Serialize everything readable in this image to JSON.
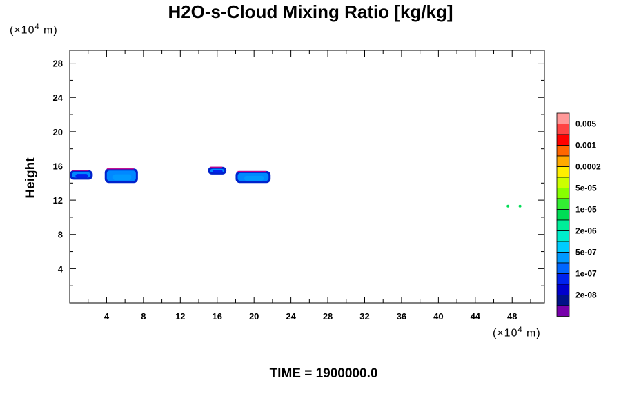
{
  "title": "H2O-s-Cloud Mixing Ratio [kg/kg]",
  "footer": "TIME = 1900000.0",
  "y_unit": {
    "prefix": "(×10",
    "exp": "4",
    "suffix": " m)"
  },
  "x_unit": {
    "prefix": "(×10",
    "exp": "4",
    "suffix": " m)"
  },
  "chart_data": {
    "type": "heatmap",
    "title": "H2O-s-Cloud Mixing Ratio [kg/kg]",
    "xlabel": "",
    "ylabel": "Height",
    "x_unit_label": "(×10^4 m)",
    "y_unit_label": "(×10^4 m)",
    "xlim": [
      0,
      51.5
    ],
    "ylim": [
      0,
      29.5
    ],
    "x_ticks": [
      4,
      8,
      12,
      16,
      20,
      24,
      28,
      32,
      36,
      40,
      44,
      48
    ],
    "y_ticks": [
      4,
      8,
      12,
      16,
      20,
      24,
      28
    ],
    "colorbar": {
      "labels": [
        "0.005",
        "0.001",
        "0.0002",
        "5e-05",
        "1e-05",
        "2e-06",
        "5e-07",
        "1e-07",
        "2e-08"
      ],
      "colors": [
        "#ff9999",
        "#ff4444",
        "#ff0000",
        "#ff6600",
        "#ffaa00",
        "#ffee00",
        "#ccff00",
        "#88ff00",
        "#33ee33",
        "#00dd55",
        "#00ee99",
        "#00eecc",
        "#00ccff",
        "#0099ff",
        "#0066ff",
        "#0022ee",
        "#0000cc",
        "#001188",
        "#7700aa"
      ]
    },
    "cloud_regions": [
      {
        "x_range": [
          0,
          2.5
        ],
        "y_range": [
          14.4,
          15.5
        ],
        "level": "1e-07"
      },
      {
        "x_range": [
          3.8,
          7.4
        ],
        "y_range": [
          14.0,
          15.7
        ],
        "level": "5e-07"
      },
      {
        "x_range": [
          15,
          17
        ],
        "y_range": [
          15.0,
          15.9
        ],
        "level": "1e-07"
      },
      {
        "x_range": [
          18,
          21.8
        ],
        "y_range": [
          14.0,
          15.4
        ],
        "level": "5e-07"
      },
      {
        "x_range": [
          47.4,
          49
        ],
        "y_range": [
          11.2,
          11.4
        ],
        "level": "1e-05"
      }
    ]
  }
}
